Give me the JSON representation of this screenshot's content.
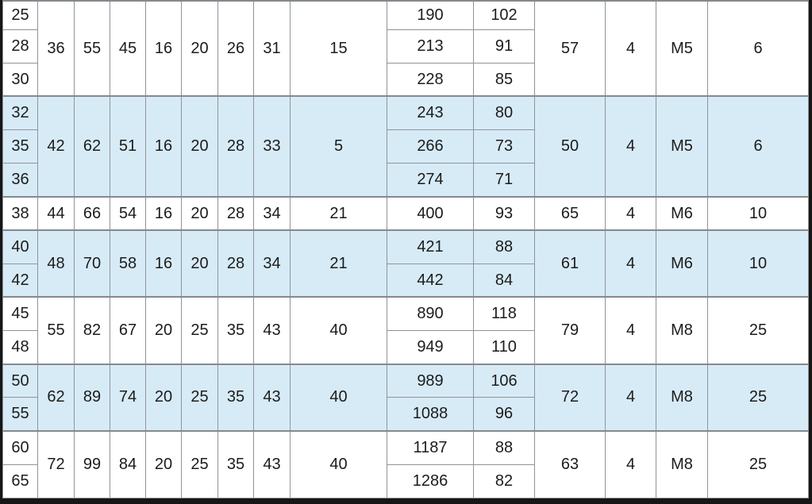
{
  "palette": {
    "highlight_color": "#d7ebf7",
    "grid_color": "#8f9498",
    "frame_color": "#161616",
    "text_color": "#1c1c1c",
    "background_color": "#ffffff"
  },
  "table": {
    "groups": [
      {
        "highlight": false,
        "left": [
          "36",
          "55",
          "45",
          "16",
          "20",
          "26",
          "31",
          "15"
        ],
        "right": [
          "57",
          "4",
          "M5",
          "6"
        ],
        "rows": [
          {
            "bore": "25",
            "a": "190",
            "b": "102"
          },
          {
            "bore": "28",
            "a": "213",
            "b": "91"
          },
          {
            "bore": "30",
            "a": "228",
            "b": "85"
          }
        ]
      },
      {
        "highlight": true,
        "left": [
          "42",
          "62",
          "51",
          "16",
          "20",
          "28",
          "33",
          "5"
        ],
        "right": [
          "50",
          "4",
          "M5",
          "6"
        ],
        "rows": [
          {
            "bore": "32",
            "a": "243",
            "b": "80"
          },
          {
            "bore": "35",
            "a": "266",
            "b": "73"
          },
          {
            "bore": "36",
            "a": "274",
            "b": "71"
          }
        ]
      },
      {
        "highlight": false,
        "left": [
          "44",
          "66",
          "54",
          "16",
          "20",
          "28",
          "34",
          "21"
        ],
        "right": [
          "65",
          "4",
          "M6",
          "10"
        ],
        "rows": [
          {
            "bore": "38",
            "a": "400",
            "b": "93"
          }
        ]
      },
      {
        "highlight": true,
        "left": [
          "48",
          "70",
          "58",
          "16",
          "20",
          "28",
          "34",
          "21"
        ],
        "right": [
          "61",
          "4",
          "M6",
          "10"
        ],
        "rows": [
          {
            "bore": "40",
            "a": "421",
            "b": "88"
          },
          {
            "bore": "42",
            "a": "442",
            "b": "84"
          }
        ]
      },
      {
        "highlight": false,
        "left": [
          "55",
          "82",
          "67",
          "20",
          "25",
          "35",
          "43",
          "40"
        ],
        "right": [
          "79",
          "4",
          "M8",
          "25"
        ],
        "rows": [
          {
            "bore": "45",
            "a": "890",
            "b": "118"
          },
          {
            "bore": "48",
            "a": "949",
            "b": "110"
          }
        ]
      },
      {
        "highlight": true,
        "left": [
          "62",
          "89",
          "74",
          "20",
          "25",
          "35",
          "43",
          "40"
        ],
        "right": [
          "72",
          "4",
          "M8",
          "25"
        ],
        "rows": [
          {
            "bore": "50",
            "a": "989",
            "b": "106"
          },
          {
            "bore": "55",
            "a": "1088",
            "b": "96"
          }
        ]
      },
      {
        "highlight": false,
        "left": [
          "72",
          "99",
          "84",
          "20",
          "25",
          "35",
          "43",
          "40"
        ],
        "right": [
          "63",
          "4",
          "M8",
          "25"
        ],
        "rows": [
          {
            "bore": "60",
            "a": "1187",
            "b": "88"
          },
          {
            "bore": "65",
            "a": "1286",
            "b": "82"
          }
        ]
      }
    ]
  }
}
